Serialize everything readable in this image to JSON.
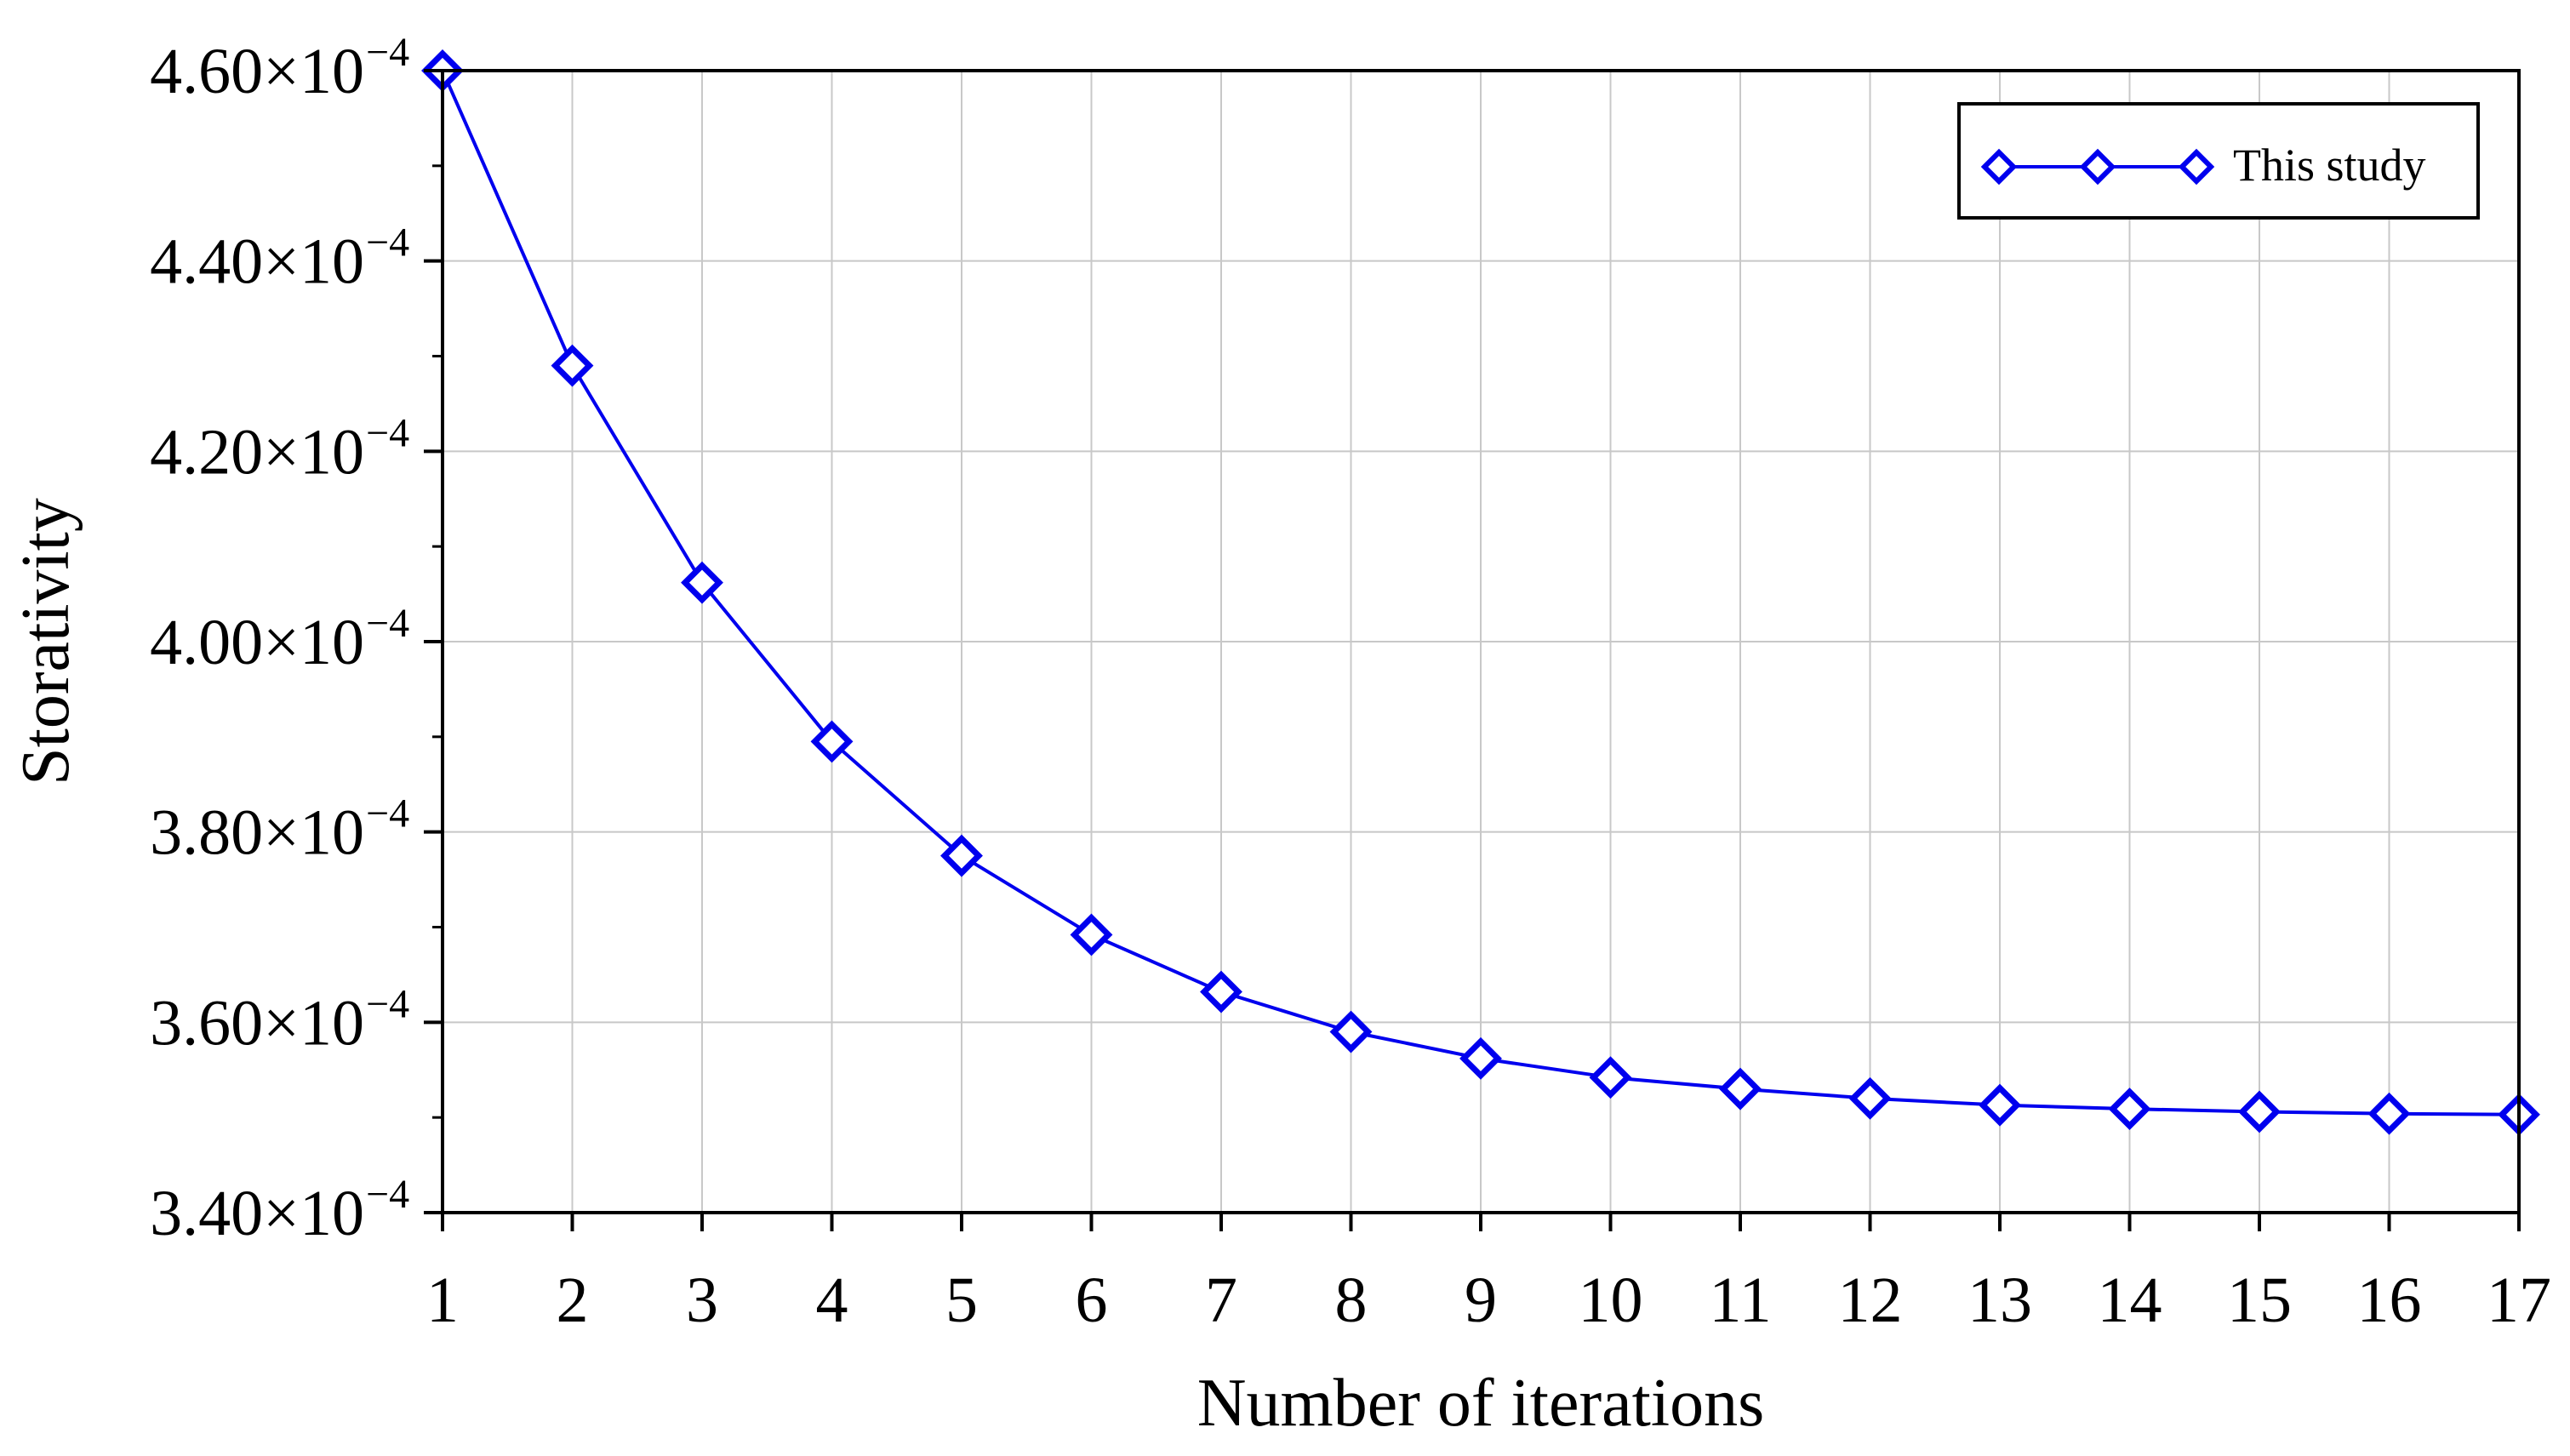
{
  "chart_data": {
    "type": "line",
    "xlabel": "Number of iterations",
    "ylabel": "Storativity",
    "x": [
      1,
      2,
      3,
      4,
      5,
      6,
      7,
      8,
      9,
      10,
      11,
      12,
      13,
      14,
      15,
      16,
      17
    ],
    "xlim": [
      1,
      17
    ],
    "xticks": [
      1,
      2,
      3,
      4,
      5,
      6,
      7,
      8,
      9,
      10,
      11,
      12,
      13,
      14,
      15,
      16,
      17
    ],
    "ylim": [
      0.00034,
      0.00046
    ],
    "ytick_labels": [
      {
        "value": 0.00034,
        "mantissa": "3.40",
        "times": "×10",
        "exponent": "−4"
      },
      {
        "value": 0.00036,
        "mantissa": "3.60",
        "times": "×10",
        "exponent": "−4"
      },
      {
        "value": 0.00038,
        "mantissa": "3.80",
        "times": "×10",
        "exponent": "−4"
      },
      {
        "value": 0.0004,
        "mantissa": "4.00",
        "times": "×10",
        "exponent": "−4"
      },
      {
        "value": 0.00042,
        "mantissa": "4.20",
        "times": "×10",
        "exponent": "−4"
      },
      {
        "value": 0.00044,
        "mantissa": "4.40",
        "times": "×10",
        "exponent": "−4"
      },
      {
        "value": 0.00046,
        "mantissa": "4.60",
        "times": "×10",
        "exponent": "−4"
      }
    ],
    "y_minor_step": 0.0001,
    "grid": true,
    "legend_position": "top-right",
    "series": [
      {
        "name": "This study",
        "color": "#0000ee",
        "marker": "diamond",
        "values": [
          0.00046,
          0.000429,
          0.0004062,
          0.0003895,
          0.0003775,
          0.0003692,
          0.0003632,
          0.000359,
          0.0003562,
          0.0003542,
          0.000353,
          0.000352,
          0.0003513,
          0.0003509,
          0.0003506,
          0.0003504,
          0.0003503
        ]
      }
    ]
  }
}
